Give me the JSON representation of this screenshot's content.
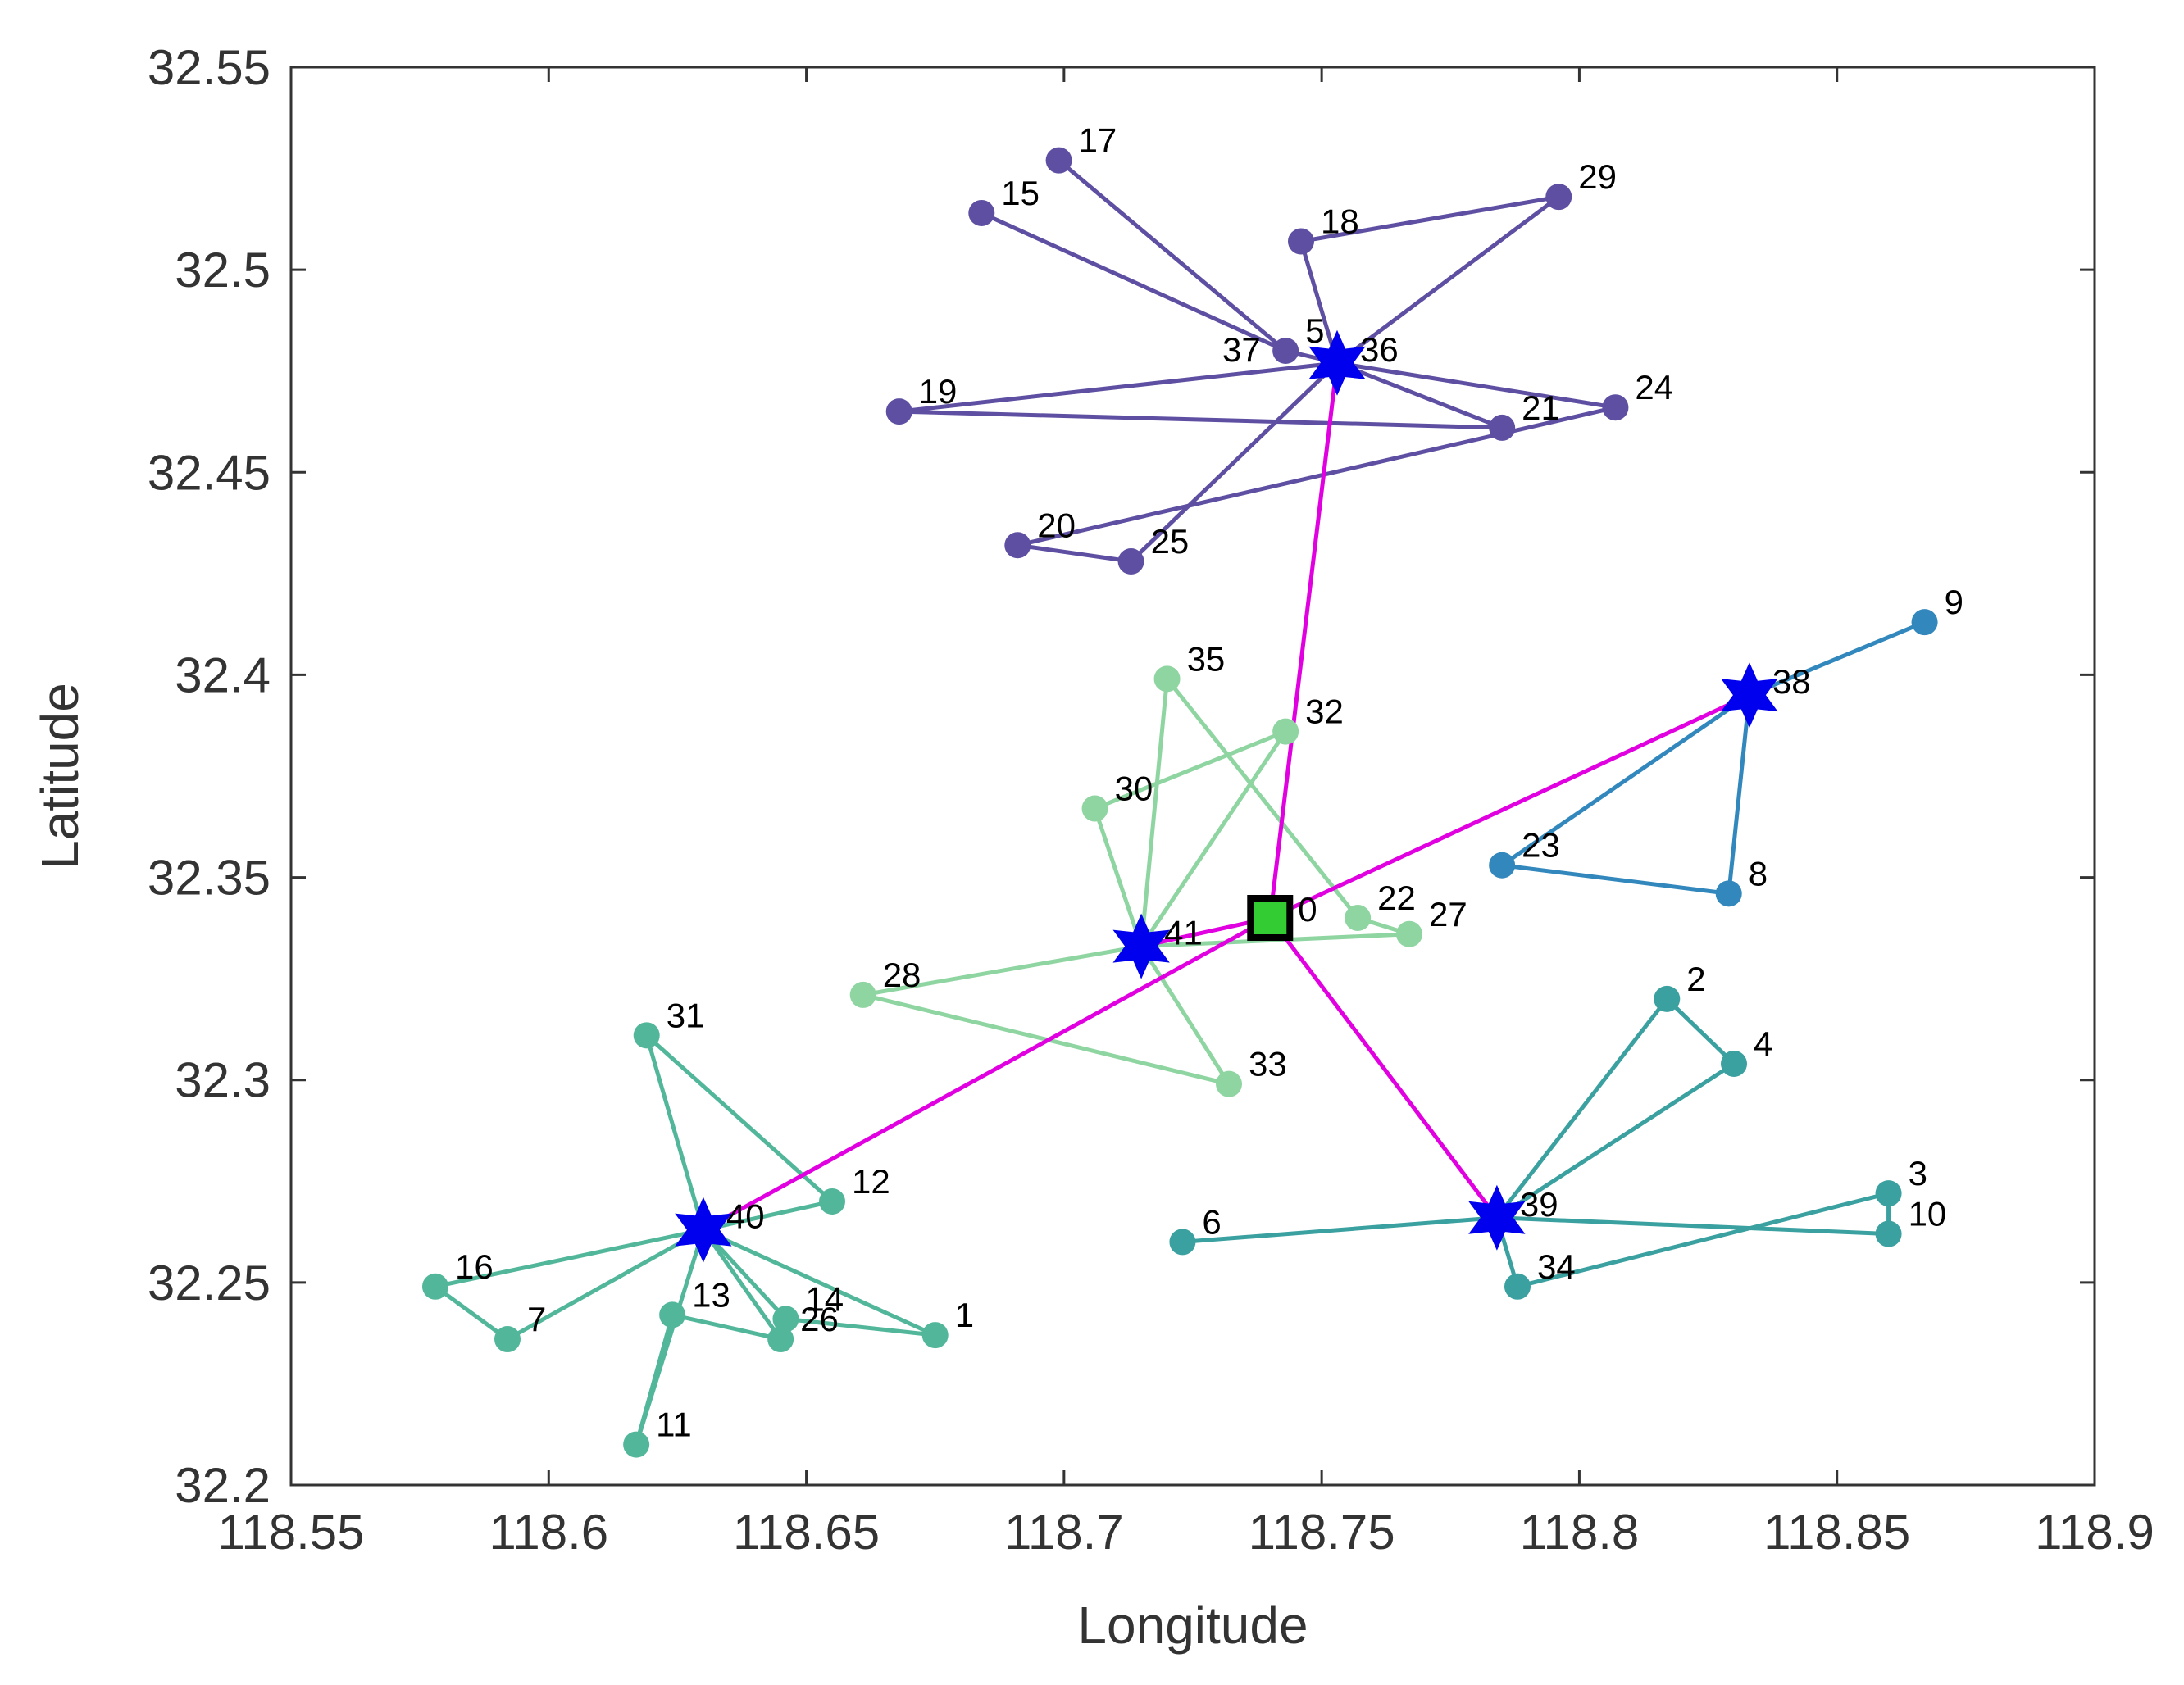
{
  "chart_data": {
    "type": "scatter",
    "title": "",
    "xlabel": "Longitude",
    "ylabel": "Latitude",
    "xlim": [
      118.55,
      118.9
    ],
    "ylim": [
      32.2,
      32.55
    ],
    "xticks": [
      118.55,
      118.6,
      118.65,
      118.7,
      118.75,
      118.8,
      118.85,
      118.9
    ],
    "yticks": [
      32.2,
      32.25,
      32.3,
      32.35,
      32.4,
      32.45,
      32.5,
      32.55
    ],
    "xtick_labels": [
      "118.55",
      "118.6",
      "118.65",
      "118.7",
      "118.75",
      "118.8",
      "118.85",
      "118.9"
    ],
    "ytick_labels": [
      "32.2",
      "32.25",
      "32.3",
      "32.35",
      "32.4",
      "32.45",
      "32.5",
      "32.55"
    ],
    "grid": false,
    "depot": {
      "id": 0,
      "label": "0",
      "x": 118.74,
      "y": 32.34,
      "color": "#33cc33"
    },
    "hubs": [
      {
        "id": 36,
        "label": "36",
        "x": 118.753,
        "y": 32.477
      },
      {
        "id": 37,
        "label": "37",
        "x": 118.753,
        "y": 32.477
      },
      {
        "id": 38,
        "label": "38",
        "x": 118.833,
        "y": 32.395
      },
      {
        "id": 39,
        "label": "39",
        "x": 118.784,
        "y": 32.266
      },
      {
        "id": 40,
        "label": "40",
        "x": 118.63,
        "y": 32.263
      },
      {
        "id": 41,
        "label": "41",
        "x": 118.715,
        "y": 32.333
      }
    ],
    "hub_color": "#0000ee",
    "trunk_color": "#e000e0",
    "trunk_links": [
      [
        0,
        36
      ],
      [
        0,
        38
      ],
      [
        0,
        39
      ],
      [
        0,
        40
      ],
      [
        0,
        41
      ]
    ],
    "clusters": [
      {
        "hub": 36,
        "color": "#5e4fa2",
        "points": [
          {
            "id": 5,
            "label": "5",
            "x": 118.743,
            "y": 32.48
          },
          {
            "id": 15,
            "label": "15",
            "x": 118.684,
            "y": 32.514
          },
          {
            "id": 17,
            "label": "17",
            "x": 118.699,
            "y": 32.527
          },
          {
            "id": 18,
            "label": "18",
            "x": 118.746,
            "y": 32.507
          },
          {
            "id": 19,
            "label": "19",
            "x": 118.668,
            "y": 32.465
          },
          {
            "id": 20,
            "label": "20",
            "x": 118.691,
            "y": 32.432
          },
          {
            "id": 21,
            "label": "21",
            "x": 118.785,
            "y": 32.461
          },
          {
            "id": 24,
            "label": "24",
            "x": 118.807,
            "y": 32.466
          },
          {
            "id": 25,
            "label": "25",
            "x": 118.713,
            "y": 32.428
          },
          {
            "id": 29,
            "label": "29",
            "x": 118.796,
            "y": 32.518
          }
        ],
        "edges": [
          [
            36,
            5
          ],
          [
            5,
            17
          ],
          [
            5,
            15
          ],
          [
            36,
            18
          ],
          [
            18,
            29
          ],
          [
            29,
            36
          ],
          [
            36,
            19
          ],
          [
            19,
            21
          ],
          [
            21,
            36
          ],
          [
            36,
            24
          ],
          [
            24,
            20
          ],
          [
            20,
            25
          ],
          [
            25,
            36
          ]
        ]
      },
      {
        "hub": 38,
        "color": "#3288bd",
        "points": [
          {
            "id": 9,
            "label": "9",
            "x": 118.867,
            "y": 32.413
          },
          {
            "id": 23,
            "label": "23",
            "x": 118.785,
            "y": 32.353
          },
          {
            "id": 8,
            "label": "8",
            "x": 118.829,
            "y": 32.346
          }
        ],
        "edges": [
          [
            38,
            9
          ],
          [
            38,
            23
          ],
          [
            23,
            8
          ],
          [
            8,
            38
          ]
        ]
      },
      {
        "hub": 39,
        "color": "#3aa0a0",
        "points": [
          {
            "id": 2,
            "label": "2",
            "x": 118.817,
            "y": 32.32
          },
          {
            "id": 4,
            "label": "4",
            "x": 118.83,
            "y": 32.304
          },
          {
            "id": 3,
            "label": "3",
            "x": 118.86,
            "y": 32.272
          },
          {
            "id": 10,
            "label": "10",
            "x": 118.86,
            "y": 32.262
          },
          {
            "id": 6,
            "label": "6",
            "x": 118.723,
            "y": 32.26
          },
          {
            "id": 34,
            "label": "34",
            "x": 118.788,
            "y": 32.249
          }
        ],
        "edges": [
          [
            39,
            2
          ],
          [
            2,
            4
          ],
          [
            4,
            39
          ],
          [
            39,
            6
          ],
          [
            39,
            10
          ],
          [
            10,
            3
          ],
          [
            3,
            34
          ],
          [
            34,
            39
          ]
        ]
      },
      {
        "hub": 40,
        "color": "#52b79a",
        "points": [
          {
            "id": 31,
            "label": "31",
            "x": 118.619,
            "y": 32.311
          },
          {
            "id": 12,
            "label": "12",
            "x": 118.655,
            "y": 32.27
          },
          {
            "id": 16,
            "label": "16",
            "x": 118.578,
            "y": 32.249
          },
          {
            "id": 7,
            "label": "7",
            "x": 118.592,
            "y": 32.236
          },
          {
            "id": 13,
            "label": "13",
            "x": 118.624,
            "y": 32.242
          },
          {
            "id": 26,
            "label": "26",
            "x": 118.645,
            "y": 32.236
          },
          {
            "id": 14,
            "label": "14",
            "x": 118.646,
            "y": 32.241
          },
          {
            "id": 1,
            "label": "1",
            "x": 118.675,
            "y": 32.237
          },
          {
            "id": 11,
            "label": "11",
            "x": 118.617,
            "y": 32.21
          }
        ],
        "edges": [
          [
            40,
            31
          ],
          [
            31,
            12
          ],
          [
            12,
            40
          ],
          [
            40,
            16
          ],
          [
            16,
            7
          ],
          [
            7,
            40
          ],
          [
            40,
            26
          ],
          [
            26,
            13
          ],
          [
            13,
            11
          ],
          [
            11,
            40
          ],
          [
            40,
            14
          ],
          [
            14,
            1
          ],
          [
            1,
            40
          ]
        ]
      },
      {
        "hub": 41,
        "color": "#8fd5a1",
        "points": [
          {
            "id": 35,
            "label": "35",
            "x": 118.72,
            "y": 32.399
          },
          {
            "id": 32,
            "label": "32",
            "x": 118.743,
            "y": 32.386
          },
          {
            "id": 30,
            "label": "30",
            "x": 118.706,
            "y": 32.367
          },
          {
            "id": 22,
            "label": "22",
            "x": 118.757,
            "y": 32.34
          },
          {
            "id": 27,
            "label": "27",
            "x": 118.767,
            "y": 32.336
          },
          {
            "id": 28,
            "label": "28",
            "x": 118.661,
            "y": 32.321
          },
          {
            "id": 33,
            "label": "33",
            "x": 118.732,
            "y": 32.299
          }
        ],
        "edges": [
          [
            41,
            35
          ],
          [
            35,
            22
          ],
          [
            22,
            27
          ],
          [
            27,
            41
          ],
          [
            41,
            30
          ],
          [
            30,
            32
          ],
          [
            32,
            41
          ],
          [
            41,
            28
          ],
          [
            28,
            33
          ],
          [
            33,
            41
          ]
        ]
      }
    ]
  }
}
